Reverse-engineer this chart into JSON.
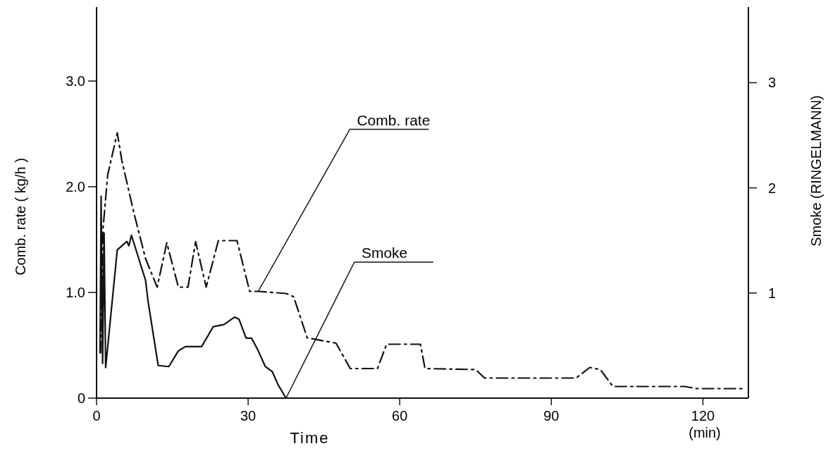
{
  "chart_data": {
    "type": "line",
    "xlabel": "Time",
    "ylabel": "Comb. rate ( kg/h )",
    "y2label": "Smoke (RINGELMANN)",
    "xlim": [
      0,
      129
    ],
    "xticks": [
      0,
      30,
      60,
      90,
      120
    ],
    "ylim": [
      0,
      3.7
    ],
    "yticks": [
      0,
      {
        "value": 1,
        "label": "1.0"
      },
      {
        "value": 2,
        "label": "2.0"
      },
      {
        "value": 3,
        "label": "3.0"
      }
    ],
    "y2lim": [
      0,
      3.72
    ],
    "y2ticks": [
      1,
      2,
      3
    ],
    "grid": false,
    "marker": "none",
    "series": [
      {
        "color": "#111111",
        "line_style": "dashed",
        "x": [
          0.8,
          1.3,
          2.2,
          4.1,
          5.0,
          7.4,
          9.7,
          12.0,
          13.9,
          16.2,
          18.1,
          19.6,
          21.7,
          24.1,
          27.8,
          30.3,
          32,
          37.5,
          39,
          41.7,
          47.4,
          50.2,
          55.6,
          57.4,
          64.1,
          65,
          75,
          76.8,
          94.9,
          97.6,
          99.7,
          102.2,
          116.4,
          118.8,
          128.5
        ],
        "values": [
          0.43,
          1.61,
          2.11,
          2.51,
          2.25,
          1.75,
          1.32,
          1.05,
          1.47,
          1.05,
          1.05,
          1.48,
          1.05,
          1.49,
          1.49,
          1.01,
          1.01,
          0.99,
          0.96,
          0.57,
          0.52,
          0.28,
          0.28,
          0.51,
          0.51,
          0.28,
          0.27,
          0.19,
          0.19,
          0.29,
          0.27,
          0.11,
          0.11,
          0.09,
          0.09
        ]
      },
      {
        "color": "#111111",
        "line_style": "solid",
        "axis": "y2",
        "x": [
          0.7,
          0.9,
          1.2,
          1.5,
          1.8,
          4.1,
          6.0,
          6.4,
          6.9,
          9.7,
          10.2,
          12.2,
          14.3,
          16.2,
          17.6,
          20.8,
          23.1,
          25.2,
          27.3,
          28.2,
          29.6,
          30.7,
          32,
          33.4,
          34.8,
          35.9,
          37.5
        ],
        "values": [
          0.43,
          1.92,
          0.33,
          1.57,
          0.29,
          1.41,
          1.49,
          1.45,
          1.55,
          1.12,
          0.92,
          0.31,
          0.3,
          0.45,
          0.49,
          0.49,
          0.68,
          0.7,
          0.77,
          0.75,
          0.57,
          0.57,
          0.45,
          0.3,
          0.25,
          0.13,
          0
        ]
      }
    ],
    "annotations": [
      {
        "text": "Comb. rate",
        "x": 32,
        "y": 1.01
      },
      {
        "text": "Smoke",
        "x": 37.5,
        "y": 0
      },
      "(min)"
    ]
  }
}
